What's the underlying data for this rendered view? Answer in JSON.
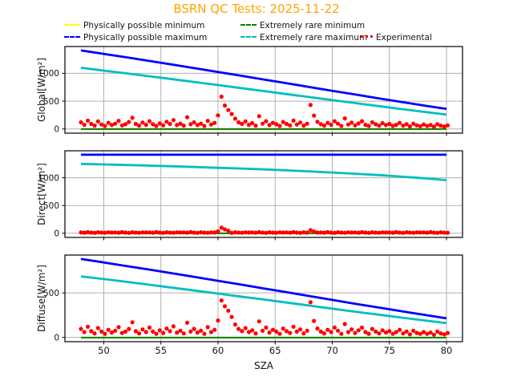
{
  "title": {
    "text": "BSRN QC Tests: 2025-11-22",
    "color": "#ffa500"
  },
  "xlabel": "SZA",
  "colors": {
    "grid": "#b0b0b0",
    "frame": "#000000",
    "tick_text": "#141414"
  },
  "legend": {
    "entries": [
      {
        "label": "Physically possible minimum",
        "color": "#ffff00",
        "style": "dashed"
      },
      {
        "label": "Physically possible maximum",
        "color": "#0000ff",
        "style": "dashed"
      },
      {
        "label": "Extremely rare minimum",
        "color": "#008000",
        "style": "dashed"
      },
      {
        "label": "Extremely rare maximum",
        "color": "#00bfbf",
        "style": "dashed"
      },
      {
        "label": "Experimental",
        "color": "#ff0000",
        "style": "dotted"
      }
    ]
  },
  "chart_data": [
    {
      "type": "line",
      "name": "global",
      "ylabel": "Global[W/m²]",
      "xlim": [
        46.6,
        81.4
      ],
      "ylim": [
        -75,
        1481
      ],
      "xticks": [
        50,
        55,
        60,
        65,
        70,
        75,
        80
      ],
      "yticks": [
        0,
        500,
        1000
      ],
      "x": [
        48,
        50,
        52,
        54,
        56,
        58,
        60,
        62,
        64,
        66,
        68,
        70,
        72,
        74,
        76,
        78,
        80
      ],
      "series": [
        {
          "name": "Physically possible minimum",
          "color": "#ffff00",
          "width": 2,
          "values": [
            -4,
            -4,
            -4,
            -4,
            -4,
            -4,
            -4,
            -4,
            -4,
            -4,
            -4,
            -4,
            -4,
            -4,
            -4,
            -4,
            -4
          ]
        },
        {
          "name": "Physically possible maximum",
          "color": "#0000ff",
          "width": 2.8,
          "values": [
            1411,
            1349,
            1286,
            1222,
            1157,
            1091,
            1024,
            957,
            889,
            821,
            753,
            686,
            619,
            552,
            487,
            422,
            360
          ]
        },
        {
          "name": "Extremely rare minimum",
          "color": "#008000",
          "width": 2,
          "values": [
            -2,
            -2,
            -2,
            -2,
            -2,
            -2,
            -2,
            -2,
            -2,
            -2,
            -2,
            -2,
            -2,
            -2,
            -2,
            -2,
            -2
          ]
        },
        {
          "name": "Extremely rare maximum",
          "color": "#00bfbf",
          "width": 2.8,
          "values": [
            1099,
            1049,
            999,
            947,
            895,
            842,
            789,
            735,
            681,
            627,
            573,
            519,
            465,
            412,
            359,
            308,
            258
          ]
        }
      ],
      "experimental": {
        "name": "Experimental",
        "color": "#ff0000",
        "x_start": 48,
        "x_step": 0.3,
        "y": [
          120,
          75,
          150,
          90,
          60,
          135,
          80,
          55,
          110,
          70,
          95,
          145,
          65,
          85,
          125,
          200,
          90,
          60,
          115,
          75,
          140,
          85,
          55,
          100,
          65,
          130,
          90,
          160,
          70,
          95,
          60,
          210,
          85,
          120,
          70,
          95,
          55,
          145,
          80,
          110,
          245,
          580,
          420,
          340,
          270,
          185,
          120,
          90,
          135,
          75,
          105,
          60,
          230,
          95,
          140,
          70,
          110,
          85,
          55,
          125,
          90,
          65,
          150,
          80,
          115,
          60,
          95,
          430,
          240,
          130,
          85,
          60,
          110,
          75,
          140,
          95,
          55,
          190,
          80,
          115,
          65,
          100,
          140,
          75,
          55,
          120,
          85,
          60,
          105,
          70,
          90,
          55,
          75,
          110,
          60,
          85,
          45,
          95,
          65,
          50,
          80,
          55,
          70,
          40,
          85,
          60,
          45,
          65
        ]
      }
    },
    {
      "type": "line",
      "name": "direct",
      "ylabel": "Direct[W/m²]",
      "xlim": [
        46.6,
        81.4
      ],
      "ylim": [
        -75,
        1486
      ],
      "xticks": [
        50,
        55,
        60,
        65,
        70,
        75,
        80
      ],
      "yticks": [
        0,
        500,
        1000
      ],
      "x": [
        48,
        50,
        52,
        54,
        56,
        58,
        60,
        62,
        64,
        66,
        68,
        70,
        72,
        74,
        76,
        78,
        80
      ],
      "series": [
        {
          "name": "Physically possible minimum",
          "color": "#ffff00",
          "width": 2,
          "values": [
            -4,
            -4,
            -4,
            -4,
            -4,
            -4,
            -4,
            -4,
            -4,
            -4,
            -4,
            -4,
            -4,
            -4,
            -4,
            -4,
            -4
          ]
        },
        {
          "name": "Physically possible maximum",
          "color": "#0000ff",
          "width": 2.8,
          "values": [
            1415,
            1415,
            1415,
            1415,
            1415,
            1415,
            1415,
            1415,
            1415,
            1415,
            1415,
            1415,
            1415,
            1415,
            1415,
            1415,
            1415
          ]
        },
        {
          "name": "Extremely rare minimum",
          "color": "#008000",
          "width": 2,
          "values": [
            -2,
            -2,
            -2,
            -2,
            -2,
            -2,
            -2,
            -2,
            -2,
            -2,
            -2,
            -2,
            -2,
            -2,
            -2,
            -2,
            -2
          ]
        },
        {
          "name": "Extremely rare maximum",
          "color": "#00bfbf",
          "width": 2.8,
          "values": [
            1251,
            1241,
            1230,
            1219,
            1207,
            1194,
            1180,
            1166,
            1150,
            1133,
            1115,
            1095,
            1073,
            1049,
            1022,
            992,
            957
          ]
        }
      ],
      "experimental": {
        "name": "Experimental",
        "color": "#ff0000",
        "x_start": 48,
        "x_step": 0.3,
        "y": [
          15,
          10,
          20,
          12,
          8,
          18,
          11,
          9,
          16,
          13,
          15,
          10,
          20,
          12,
          8,
          18,
          11,
          9,
          16,
          13,
          15,
          10,
          20,
          12,
          8,
          18,
          11,
          9,
          16,
          13,
          15,
          10,
          20,
          12,
          8,
          18,
          11,
          9,
          16,
          13,
          35,
          100,
          70,
          45,
          8,
          18,
          11,
          9,
          16,
          13,
          15,
          10,
          20,
          12,
          8,
          18,
          11,
          9,
          16,
          13,
          15,
          10,
          20,
          12,
          8,
          18,
          11,
          55,
          30,
          13,
          15,
          10,
          20,
          12,
          8,
          18,
          11,
          9,
          16,
          13,
          15,
          10,
          20,
          12,
          8,
          18,
          11,
          9,
          16,
          13,
          15,
          10,
          20,
          12,
          8,
          18,
          11,
          9,
          16,
          13,
          15,
          10,
          20,
          12,
          8,
          18,
          11,
          9
        ]
      }
    },
    {
      "type": "line",
      "name": "diffuse",
      "ylabel": "Diffuse[W/m²]",
      "xlim": [
        46.6,
        81.4
      ],
      "ylim": [
        -48,
        924
      ],
      "xticks": [
        50,
        55,
        60,
        65,
        70,
        75,
        80
      ],
      "yticks": [
        0,
        500
      ],
      "x": [
        48,
        50,
        52,
        54,
        56,
        58,
        60,
        62,
        64,
        66,
        68,
        70,
        72,
        74,
        76,
        78,
        80
      ],
      "series": [
        {
          "name": "Physically possible minimum",
          "color": "#ffff00",
          "width": 2,
          "values": [
            -4,
            -4,
            -4,
            -4,
            -4,
            -4,
            -4,
            -4,
            -4,
            -4,
            -4,
            -4,
            -4,
            -4,
            -4,
            -4,
            -4
          ]
        },
        {
          "name": "Physically possible maximum",
          "color": "#0000ff",
          "width": 2.8,
          "values": [
            880,
            841,
            801,
            761,
            719,
            677,
            635,
            593,
            550,
            507,
            464,
            421,
            378,
            336,
            295,
            254,
            214
          ]
        },
        {
          "name": "Extremely rare minimum",
          "color": "#008000",
          "width": 2,
          "values": [
            -2,
            -2,
            -2,
            -2,
            -2,
            -2,
            -2,
            -2,
            -2,
            -2,
            -2,
            -2,
            -2,
            -2,
            -2,
            -2,
            -2
          ]
        },
        {
          "name": "Extremely rare maximum",
          "color": "#00bfbf",
          "width": 2.8,
          "values": [
            685,
            655,
            623,
            591,
            558,
            525,
            492,
            458,
            425,
            391,
            357,
            323,
            289,
            256,
            223,
            191,
            160
          ]
        }
      ],
      "experimental": {
        "name": "Experimental",
        "color": "#ff0000",
        "x_start": 48,
        "x_step": 0.3,
        "y": [
          95,
          60,
          120,
          70,
          45,
          105,
          65,
          40,
          85,
          55,
          75,
          115,
          50,
          65,
          95,
          170,
          70,
          45,
          90,
          60,
          110,
          65,
          40,
          80,
          50,
          100,
          70,
          125,
          55,
          75,
          45,
          165,
          65,
          95,
          55,
          75,
          40,
          115,
          60,
          85,
          190,
          415,
          350,
          300,
          230,
          145,
          95,
          70,
          105,
          60,
          80,
          45,
          180,
          75,
          110,
          55,
          85,
          65,
          40,
          100,
          70,
          50,
          120,
          65,
          90,
          45,
          75,
          395,
          185,
          100,
          65,
          45,
          85,
          60,
          110,
          75,
          40,
          150,
          60,
          90,
          50,
          80,
          110,
          60,
          40,
          95,
          65,
          45,
          80,
          55,
          70,
          40,
          60,
          85,
          45,
          65,
          35,
          75,
          50,
          40,
          60,
          40,
          55,
          30,
          65,
          45,
          35,
          50
        ]
      }
    }
  ]
}
